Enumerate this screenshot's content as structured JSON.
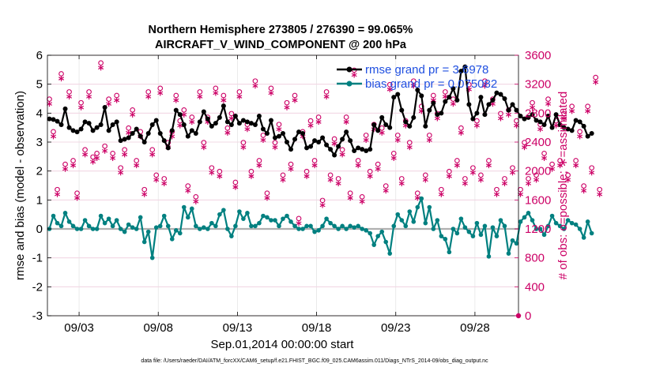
{
  "chart_data": {
    "type": "line",
    "title": [
      "Northern Hemisphere 273805 / 276390 = 99.065%",
      "AIRCRAFT_V_WIND_COMPONENT @ 200 hPa"
    ],
    "xlabel": "Sep.01,2014 00:00:00 start",
    "ylabel": "rmse and bias (model - observation)",
    "y2label": "# of obs: o=possible; ∗=assimilated",
    "footnote": "data file: /Users/raeder/DAI/ATM_forcXX/CAM6_setup/f.e21.FHIST_BGC.f09_025.CAM6assim.011/Diags_NTrS_2014-09/obs_diag_output.nc",
    "xlim": [
      1.0,
      30.75
    ],
    "ylim": [
      -3,
      6
    ],
    "y2lim": [
      0,
      3600
    ],
    "x_ticks": [
      3,
      8,
      13,
      18,
      23,
      28
    ],
    "x_tick_labels": [
      "09/03",
      "09/08",
      "09/13",
      "09/18",
      "09/23",
      "09/28"
    ],
    "y_ticks": [
      -3,
      -2,
      -1,
      0,
      1,
      2,
      3,
      4,
      5,
      6
    ],
    "y2_ticks": [
      0,
      400,
      800,
      1200,
      1600,
      2000,
      2400,
      2800,
      3200,
      3600
    ],
    "grid": true,
    "legend_position": "top-right",
    "x_start": 1.125,
    "x_step": 0.25,
    "series": [
      {
        "name": "rmse",
        "legend": "rmse grand pr = 3.6978",
        "color": "#000000",
        "axis": "left",
        "values": [
          3.8,
          3.78,
          3.72,
          3.6,
          4.15,
          3.5,
          3.4,
          3.35,
          3.45,
          3.7,
          3.65,
          3.4,
          3.5,
          3.6,
          4.2,
          3.4,
          3.6,
          3.7,
          3.05,
          3.1,
          3.15,
          3.3,
          3.45,
          3.2,
          3.0,
          3.3,
          3.6,
          3.75,
          3.3,
          3.05,
          2.8,
          3.4,
          4.1,
          3.95,
          3.6,
          3.2,
          3.4,
          3.3,
          3.7,
          4.05,
          3.8,
          3.55,
          3.65,
          3.85,
          4.25,
          3.7,
          3.6,
          3.9,
          3.65,
          3.75,
          3.7,
          3.65,
          3.6,
          3.9,
          3.45,
          3.3,
          3.75,
          3.15,
          3.2,
          3.3,
          3.0,
          2.75,
          3.1,
          3.35,
          3.3,
          2.8,
          2.85,
          3.05,
          3.0,
          3.15,
          2.9,
          2.75,
          2.55,
          2.85,
          3.1,
          3.35,
          3.05,
          2.7,
          2.8,
          2.75,
          2.7,
          2.75,
          3.6,
          3.4,
          3.85,
          3.6,
          3.5,
          4.55,
          4.65,
          4.1,
          3.7,
          3.55,
          3.85,
          4.8,
          4.6,
          3.55,
          4.1,
          4.35,
          3.95,
          4.0,
          4.4,
          4.55,
          4.85,
          4.45,
          5.45,
          5.6,
          4.3,
          3.8,
          4.0,
          4.55,
          3.95,
          4.3,
          4.45,
          4.7,
          4.65,
          4.5,
          4.1,
          4.3,
          4.1,
          3.9,
          3.8,
          3.85,
          3.95,
          3.75,
          3.7,
          3.6,
          3.9,
          3.5,
          3.95,
          3.6,
          3.5,
          3.45,
          3.4,
          3.75,
          3.7,
          3.55,
          3.2,
          3.3
        ]
      },
      {
        "name": "bias",
        "legend": "bias grand pr = 0.075082",
        "color": "#008080",
        "axis": "left",
        "values": [
          0.0,
          0.45,
          0.2,
          0.1,
          0.55,
          0.25,
          0.1,
          0.0,
          0.0,
          0.3,
          0.1,
          0.0,
          0.0,
          0.45,
          0.2,
          0.35,
          0.1,
          0.3,
          0.0,
          -0.1,
          0.15,
          0.05,
          0.0,
          0.4,
          -0.45,
          -0.1,
          -1.0,
          0.05,
          0.1,
          0.45,
          0.1,
          -0.35,
          -0.05,
          -0.15,
          0.75,
          0.4,
          0.7,
          0.1,
          0.0,
          0.05,
          0.0,
          0.2,
          0.1,
          0.5,
          0.65,
          0.0,
          -0.25,
          0.1,
          0.6,
          0.35,
          0.55,
          0.1,
          0.1,
          0.2,
          0.45,
          0.4,
          0.3,
          0.3,
          0.1,
          0.35,
          0.45,
          0.25,
          0.1,
          0.0,
          0.0,
          0.1,
          0.1,
          -0.1,
          -0.05,
          0.1,
          0.35,
          0.2,
          0.1,
          0.0,
          0.1,
          0.0,
          0.1,
          0.05,
          0.1,
          0.0,
          -0.05,
          -0.15,
          -0.55,
          -0.25,
          -0.1,
          -0.45,
          -0.85,
          0.1,
          0.5,
          0.3,
          0.1,
          0.6,
          0.25,
          0.75,
          1.05,
          0.2,
          0.75,
          0.0,
          0.3,
          -0.25,
          -0.35,
          -0.8,
          0.0,
          -0.15,
          0.35,
          0.05,
          -0.1,
          -0.25,
          0.2,
          -0.2,
          0.1,
          -0.95,
          0.05,
          -0.25,
          0.3,
          0.1,
          -0.85,
          -0.4,
          -0.5,
          0.25,
          0.4,
          0.55,
          0.3,
          0.0,
          0.0,
          -0.2,
          0.1,
          0.45,
          0.2,
          0.1,
          0.0,
          0.3,
          0.2,
          0.15,
          0.0,
          -0.3,
          0.25,
          -0.15
        ]
      },
      {
        "name": "obs-possible",
        "color": "#cc0066",
        "marker": "o",
        "axis": "right",
        "values": [
          2950,
          2500,
          1700,
          3300,
          2050,
          3050,
          2100,
          1650,
          2900,
          2250,
          3050,
          2150,
          2200,
          3450,
          2300,
          2950,
          2200,
          3000,
          2000,
          2250,
          2550,
          2800,
          2100,
          2500,
          1700,
          3050,
          2250,
          1900,
          3100,
          1850,
          2350,
          2500,
          3000,
          2650,
          2800,
          1750,
          2700,
          1600,
          3050,
          2350,
          2700,
          2000,
          3100,
          1950,
          3000,
          2550,
          2750,
          1800,
          3050,
          2350,
          2600,
          1950,
          3200,
          2100,
          2450,
          1650,
          3100,
          2350,
          2600,
          1900,
          2900,
          2050,
          3000,
          1300,
          2500,
          1950,
          2650,
          2100,
          2700,
          1550,
          3050,
          1900,
          2400,
          1850,
          2250,
          2700,
          1650,
          3350,
          2100,
          1600,
          2450,
          1950,
          2600,
          2050,
          2550,
          1750,
          3150,
          2200,
          2450,
          1850,
          2650,
          2350,
          3200,
          1650,
          2850,
          1900,
          2450,
          3000,
          2750,
          1700,
          3050,
          1950,
          2950,
          2100,
          2550,
          1850,
          3150,
          2000,
          2650,
          1900,
          3200,
          2100,
          2950,
          1700,
          2750,
          1850,
          2800,
          2000,
          2650,
          1700,
          2350,
          1850,
          2900,
          1900,
          2600,
          2200,
          2950,
          2050,
          2650,
          2100,
          2750,
          1900,
          2850,
          2100,
          2500,
          1750,
          2850,
          2000,
          3250,
          1700
        ]
      },
      {
        "name": "obs-assimilated",
        "color": "#cc0066",
        "marker": "*",
        "axis": "right",
        "values": [
          2950,
          2500,
          1700,
          3300,
          2050,
          3050,
          2100,
          1650,
          2900,
          2250,
          3050,
          2150,
          2200,
          3450,
          2300,
          2950,
          2200,
          3000,
          2000,
          2250,
          2550,
          2800,
          2100,
          2500,
          1700,
          3050,
          2250,
          1900,
          3100,
          1850,
          2350,
          2500,
          3000,
          2650,
          2800,
          1750,
          2700,
          1600,
          3050,
          2350,
          2700,
          2000,
          3100,
          1950,
          3000,
          2550,
          2750,
          1800,
          3050,
          2350,
          2600,
          1950,
          3200,
          2100,
          2450,
          1650,
          3100,
          2350,
          2600,
          1900,
          2900,
          2050,
          3000,
          1300,
          2500,
          1950,
          2650,
          2100,
          2700,
          1550,
          3050,
          1900,
          2400,
          1850,
          2250,
          2700,
          1650,
          3350,
          2100,
          1600,
          2450,
          1950,
          2600,
          2050,
          2550,
          1750,
          3150,
          2200,
          2450,
          1850,
          2650,
          2350,
          3200,
          1650,
          2850,
          1900,
          2450,
          3000,
          2750,
          1700,
          3050,
          1950,
          2950,
          2100,
          2550,
          1850,
          3150,
          2000,
          2650,
          1900,
          3200,
          2100,
          2950,
          1700,
          2750,
          1850,
          2800,
          2000,
          2650,
          1700,
          2350,
          1850,
          2900,
          1900,
          2600,
          2200,
          2950,
          2050,
          2650,
          2100,
          2750,
          1900,
          2850,
          2100,
          2500,
          1750,
          2850,
          2000,
          3250,
          1700
        ]
      }
    ]
  }
}
